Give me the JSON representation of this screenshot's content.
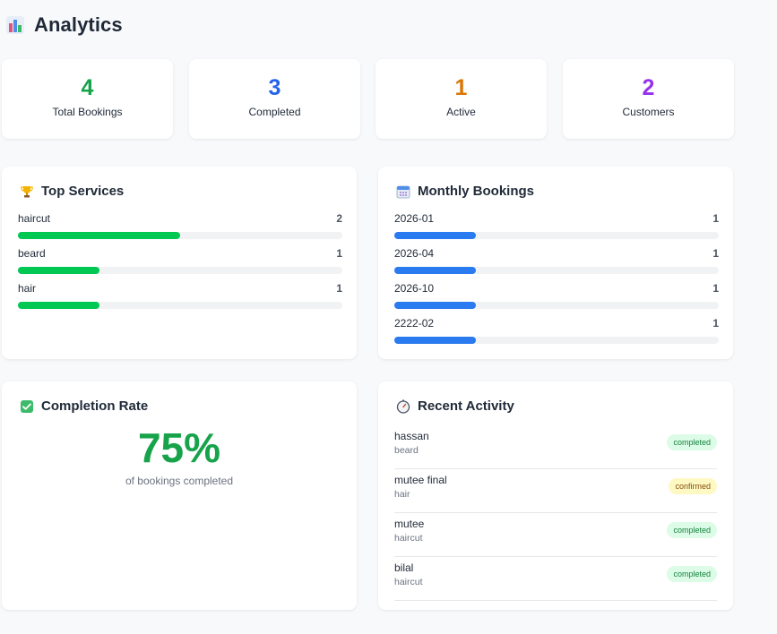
{
  "page": {
    "title": "Analytics",
    "icon": "bar-chart-icon"
  },
  "stats": [
    {
      "value": "4",
      "label": "Total Bookings",
      "color": "#16a34a"
    },
    {
      "value": "3",
      "label": "Completed",
      "color": "#2563eb"
    },
    {
      "value": "1",
      "label": "Active",
      "color": "#d97706"
    },
    {
      "value": "2",
      "label": "Customers",
      "color": "#9333ea"
    }
  ],
  "top_services": {
    "title": "Top Services",
    "icon": "trophy-icon",
    "bar_color": "#00c853",
    "max": 4,
    "items": [
      {
        "label": "haircut",
        "count": "2",
        "value": 2
      },
      {
        "label": "beard",
        "count": "1",
        "value": 1
      },
      {
        "label": "hair",
        "count": "1",
        "value": 1
      }
    ]
  },
  "monthly_bookings": {
    "title": "Monthly Bookings",
    "icon": "calendar-icon",
    "bar_color": "#2b7bf0",
    "max": 4,
    "items": [
      {
        "label": "2026-01",
        "count": "1",
        "value": 1
      },
      {
        "label": "2026-04",
        "count": "1",
        "value": 1
      },
      {
        "label": "2026-10",
        "count": "1",
        "value": 1
      },
      {
        "label": "2222-02",
        "count": "1",
        "value": 1
      }
    ]
  },
  "completion_rate": {
    "title": "Completion Rate",
    "icon": "checkbox-icon",
    "value": "75%",
    "caption": "of bookings completed"
  },
  "recent_activity": {
    "title": "Recent Activity",
    "icon": "stopwatch-icon",
    "items": [
      {
        "name": "hassan",
        "service": "beard",
        "status": "completed"
      },
      {
        "name": "mutee final",
        "service": "hair",
        "status": "confirmed"
      },
      {
        "name": "mutee",
        "service": "haircut",
        "status": "completed"
      },
      {
        "name": "bilal",
        "service": "haircut",
        "status": "completed"
      }
    ]
  }
}
